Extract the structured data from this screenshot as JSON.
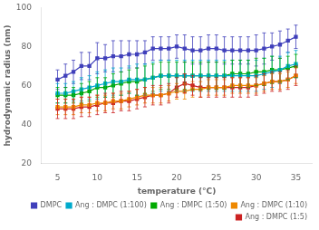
{
  "chart_data": {
    "type": "line",
    "xlabel": "temperature (°C)",
    "ylabel": "hydrodynamic radius (nm)",
    "xlim": [
      3,
      37
    ],
    "ylim": [
      20,
      100
    ],
    "xticks": [
      5,
      10,
      15,
      20,
      25,
      30,
      35
    ],
    "yticks": [
      20,
      40,
      60,
      80,
      100
    ],
    "x": [
      5,
      6,
      7,
      8,
      9,
      10,
      11,
      12,
      13,
      14,
      15,
      16,
      17,
      18,
      19,
      20,
      21,
      22,
      23,
      24,
      25,
      26,
      27,
      28,
      29,
      30,
      31,
      32,
      33,
      34,
      35
    ],
    "series": [
      {
        "name": "DMPC",
        "color": "#4040bb",
        "values": [
          63,
          65,
          67,
          70,
          70,
          74,
          74,
          75,
          75,
          76,
          76,
          77,
          79,
          79,
          79,
          80,
          79,
          78,
          78,
          79,
          79,
          78,
          78,
          78,
          78,
          78,
          79,
          80,
          81,
          83,
          85
        ],
        "errors": [
          5,
          6,
          6,
          7,
          7,
          8,
          7,
          8,
          8,
          7,
          7,
          6,
          6,
          6,
          6,
          6,
          7,
          7,
          7,
          7,
          7,
          7,
          7,
          7,
          7,
          8,
          8,
          7,
          7,
          6,
          6
        ]
      },
      {
        "name": "Ang : DMPC (1:100)",
        "color": "#00aacc",
        "values": [
          56,
          56,
          57,
          58,
          59,
          60,
          61,
          62,
          62,
          63,
          63,
          63,
          64,
          65,
          65,
          65,
          65,
          65,
          65,
          65,
          65,
          65,
          65,
          65,
          65,
          65,
          66,
          67,
          68,
          70,
          71
        ],
        "errors": [
          5,
          5,
          5,
          6,
          6,
          7,
          7,
          7,
          7,
          7,
          8,
          8,
          8,
          8,
          8,
          8,
          8,
          8,
          8,
          8,
          8,
          8,
          8,
          8,
          8,
          8,
          8,
          8,
          7,
          7,
          7
        ]
      },
      {
        "name": "Ang : DMPC (1:50)",
        "color": "#00aa00",
        "values": [
          55,
          55,
          55,
          56,
          57,
          59,
          59,
          60,
          61,
          62,
          62,
          63,
          64,
          65,
          65,
          65,
          65,
          65,
          65,
          65,
          65,
          65,
          66,
          66,
          66,
          67,
          67,
          68,
          68,
          69,
          70
        ],
        "errors": [
          4,
          4,
          4,
          5,
          5,
          5,
          5,
          6,
          6,
          6,
          7,
          7,
          7,
          7,
          7,
          7,
          7,
          7,
          7,
          7,
          7,
          7,
          7,
          7,
          7,
          7,
          7,
          7,
          6,
          6,
          6
        ]
      },
      {
        "name": "Ang : DMPC (1:10)",
        "color": "#ee8800",
        "values": [
          49,
          49,
          49,
          50,
          50,
          51,
          51,
          52,
          52,
          53,
          54,
          55,
          55,
          55,
          56,
          57,
          57,
          58,
          58,
          59,
          59,
          59,
          60,
          60,
          60,
          60,
          61,
          62,
          62,
          63,
          65
        ],
        "errors": [
          4,
          4,
          4,
          4,
          4,
          4,
          4,
          4,
          4,
          4,
          4,
          4,
          4,
          4,
          4,
          4,
          4,
          4,
          4,
          4,
          4,
          4,
          4,
          4,
          4,
          4,
          4,
          4,
          4,
          4,
          4
        ]
      },
      {
        "name": "Ang : DMPC (1:5)",
        "color": "#cc2222",
        "values": [
          48,
          48,
          48,
          49,
          49,
          50,
          51,
          51,
          52,
          52,
          53,
          54,
          55,
          55,
          56,
          59,
          61,
          60,
          59,
          59,
          59,
          59,
          59,
          59,
          59,
          60,
          61,
          62,
          62,
          63,
          65
        ],
        "errors": [
          5,
          5,
          5,
          5,
          5,
          5,
          5,
          5,
          5,
          5,
          5,
          5,
          5,
          5,
          5,
          5,
          5,
          5,
          5,
          5,
          5,
          5,
          5,
          5,
          5,
          5,
          5,
          5,
          5,
          5,
          5
        ]
      }
    ],
    "marker": "square",
    "legend": "lower right",
    "grid": false
  }
}
